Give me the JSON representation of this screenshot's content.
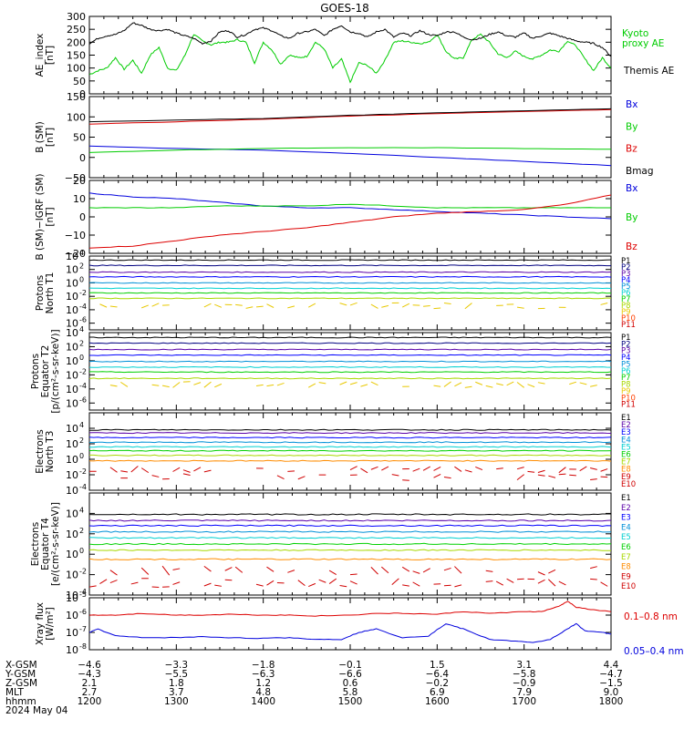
{
  "title": "GOES-18",
  "colors": {
    "black": "#000000",
    "red": "#dd0000",
    "green": "#00cc00",
    "blue": "#0000dd",
    "p_navy": "#000080",
    "p_darkviolet": "#5a00a8",
    "p_blue": "#0000ff",
    "p_steel": "#0090d8",
    "p_cyan": "#00d0d0",
    "p_teal": "#00c090",
    "p_green": "#00d000",
    "p_yellowgreen": "#a8d800",
    "p_gold": "#e8c800",
    "p_orange": "#ff8c00",
    "p_orangered": "#ff4000",
    "p_red": "#d00000"
  },
  "chart_data": [
    {
      "id": "ae",
      "type": "line",
      "ylabel": "AE_index\n[nT]",
      "ylim": [
        0,
        300
      ],
      "yticks": [
        "0",
        "50",
        "100",
        "150",
        "200",
        "250",
        "300"
      ],
      "x_range_hours": [
        12,
        18
      ],
      "series": [
        {
          "name": "Kyoto proxy AE",
          "label_lines": [
            "Kyoto",
            "proxy AE"
          ],
          "color_key": "green",
          "x": [
            12.0,
            12.1,
            12.2,
            12.3,
            12.4,
            12.5,
            12.6,
            12.7,
            12.8,
            12.9,
            13.0,
            13.1,
            13.2,
            13.3,
            13.4,
            13.5,
            13.6,
            13.7,
            13.8,
            13.9,
            14.0,
            14.1,
            14.2,
            14.3,
            14.4,
            14.5,
            14.6,
            14.7,
            14.8,
            14.9,
            15.0,
            15.1,
            15.2,
            15.3,
            15.4,
            15.5,
            15.6,
            15.7,
            15.8,
            15.9,
            16.0,
            16.1,
            16.2,
            16.3,
            16.4,
            16.5,
            16.6,
            16.7,
            16.8,
            16.9,
            17.0,
            17.1,
            17.2,
            17.3,
            17.4,
            17.5,
            17.6,
            17.7,
            17.8,
            17.9,
            18.0
          ],
          "y": [
            75,
            90,
            100,
            140,
            95,
            130,
            80,
            150,
            180,
            100,
            90,
            150,
            230,
            205,
            190,
            200,
            200,
            210,
            200,
            120,
            200,
            170,
            115,
            150,
            140,
            145,
            200,
            175,
            100,
            135,
            45,
            120,
            110,
            80,
            130,
            200,
            205,
            200,
            195,
            200,
            230,
            165,
            135,
            140,
            210,
            230,
            200,
            155,
            140,
            165,
            145,
            135,
            150,
            170,
            165,
            205,
            185,
            135,
            90,
            140,
            100
          ]
        },
        {
          "name": "Themis AE",
          "label_lines": [
            "Themis AE"
          ],
          "color_key": "black",
          "x": [
            12.0,
            12.1,
            12.2,
            12.3,
            12.4,
            12.5,
            12.6,
            12.7,
            12.8,
            12.9,
            13.0,
            13.1,
            13.2,
            13.3,
            13.4,
            13.5,
            13.6,
            13.7,
            13.8,
            13.9,
            14.0,
            14.1,
            14.2,
            14.3,
            14.4,
            14.5,
            14.6,
            14.7,
            14.8,
            14.9,
            15.0,
            15.1,
            15.2,
            15.3,
            15.4,
            15.5,
            15.6,
            15.7,
            15.8,
            15.9,
            16.0,
            16.1,
            16.2,
            16.3,
            16.4,
            16.5,
            16.6,
            16.7,
            16.8,
            16.9,
            17.0,
            17.1,
            17.2,
            17.3,
            17.4,
            17.5,
            17.6,
            17.7,
            17.8,
            17.9,
            18.0
          ],
          "y": [
            195,
            215,
            225,
            230,
            245,
            275,
            265,
            250,
            245,
            250,
            235,
            225,
            215,
            195,
            205,
            240,
            245,
            220,
            230,
            250,
            255,
            245,
            225,
            215,
            235,
            240,
            250,
            225,
            250,
            265,
            240,
            235,
            220,
            240,
            250,
            220,
            235,
            225,
            245,
            230,
            225,
            240,
            240,
            220,
            210,
            215,
            230,
            240,
            225,
            220,
            235,
            215,
            225,
            235,
            225,
            215,
            205,
            200,
            195,
            180,
            145
          ]
        }
      ]
    },
    {
      "id": "bsm",
      "type": "line",
      "ylabel": "B (SM)\n[nT]",
      "ylim": [
        -50,
        150
      ],
      "yticks": [
        "−50",
        "0",
        "50",
        "100",
        "150"
      ],
      "x_range_hours": [
        12,
        18
      ],
      "series": [
        {
          "name": "Bx",
          "color_key": "blue",
          "x": [
            12,
            13,
            14,
            15,
            16,
            17,
            18
          ],
          "y": [
            28,
            22,
            18,
            10,
            0,
            -10,
            -20
          ]
        },
        {
          "name": "By",
          "color_key": "green",
          "x": [
            12,
            13,
            14,
            15,
            16,
            17,
            18
          ],
          "y": [
            12,
            18,
            22,
            24,
            24,
            22,
            20
          ]
        },
        {
          "name": "Bz",
          "color_key": "red",
          "x": [
            12,
            13,
            14,
            15,
            16,
            17,
            18
          ],
          "y": [
            82,
            88,
            94,
            102,
            108,
            113,
            118
          ]
        },
        {
          "name": "Bmag",
          "color_key": "black",
          "x": [
            12,
            13,
            14,
            15,
            16,
            17,
            18
          ],
          "y": [
            88,
            92,
            96,
            104,
            110,
            115,
            120
          ]
        }
      ]
    },
    {
      "id": "bsmigrf",
      "type": "line",
      "ylabel": "B (SM)−IGRF (SM)\n[nT]",
      "ylim": [
        -20,
        20
      ],
      "yticks": [
        "−20",
        "−10",
        "0",
        "10",
        "20"
      ],
      "x_range_hours": [
        12,
        18
      ],
      "series": [
        {
          "name": "Bx",
          "color_key": "blue",
          "x": [
            12.0,
            12.5,
            13.0,
            13.5,
            14.0,
            14.5,
            15.0,
            15.5,
            16.0,
            16.5,
            17.0,
            17.5,
            18.0
          ],
          "y": [
            13,
            11,
            10,
            8,
            6,
            5,
            5,
            4,
            3,
            2,
            1,
            0,
            -1
          ]
        },
        {
          "name": "By",
          "color_key": "green",
          "x": [
            12.0,
            12.5,
            13.0,
            13.5,
            14.0,
            14.5,
            15.0,
            15.5,
            16.0,
            16.5,
            17.0,
            17.5,
            18.0
          ],
          "y": [
            5,
            5,
            5,
            6,
            6,
            6,
            7,
            6,
            5,
            5,
            5,
            5,
            5
          ]
        },
        {
          "name": "Bz",
          "color_key": "red",
          "x": [
            12.0,
            12.5,
            13.0,
            13.5,
            14.0,
            14.5,
            15.0,
            15.5,
            16.0,
            16.5,
            17.0,
            17.5,
            18.0
          ],
          "y": [
            -17,
            -16,
            -13,
            -10,
            -8,
            -6,
            -3,
            0,
            2,
            3,
            4,
            7,
            12
          ]
        }
      ]
    },
    {
      "id": "protons_north",
      "type": "line",
      "log": true,
      "ylabel": "Protons\nNorth T1",
      "decade_range": [
        -7,
        4
      ],
      "ytick_exps": [
        -6,
        -4,
        -2,
        0,
        2,
        4
      ],
      "x_range_hours": [
        12,
        18
      ],
      "series": [
        {
          "name": "P1",
          "color_key": "black",
          "level": 3.4
        },
        {
          "name": "P2",
          "color_key": "p_navy",
          "level": 2.6
        },
        {
          "name": "P3",
          "color_key": "p_darkviolet",
          "level": 1.6
        },
        {
          "name": "P4",
          "color_key": "p_blue",
          "level": 0.9
        },
        {
          "name": "P5",
          "color_key": "p_steel",
          "level": 0.0
        },
        {
          "name": "P6",
          "color_key": "p_cyan",
          "level": -0.8
        },
        {
          "name": "P7",
          "color_key": "p_green",
          "level": -1.5
        },
        {
          "name": "P8",
          "color_key": "p_yellowgreen",
          "level": -2.3
        },
        {
          "name": "P9",
          "color_key": "p_gold",
          "level": -3.4
        },
        {
          "name": "P10",
          "color_key": "p_orangered",
          "level": -9
        },
        {
          "name": "P11",
          "color_key": "p_red",
          "level": -9
        }
      ]
    },
    {
      "id": "protons_equator",
      "type": "line",
      "log": true,
      "ylabel": "Protons\nEquator T2\n[p/(cm²-s-sr-keV)]",
      "decade_range": [
        -7,
        4
      ],
      "ytick_exps": [
        -6,
        -4,
        -2,
        0,
        2,
        4
      ],
      "x_range_hours": [
        12,
        18
      ],
      "series": [
        {
          "name": "P1",
          "color_key": "black",
          "level": 3.3
        },
        {
          "name": "P2",
          "color_key": "p_navy",
          "level": 2.5
        },
        {
          "name": "P3",
          "color_key": "p_darkviolet",
          "level": 1.6
        },
        {
          "name": "P4",
          "color_key": "p_blue",
          "level": 0.8
        },
        {
          "name": "P5",
          "color_key": "p_steel",
          "level": -0.1
        },
        {
          "name": "P6",
          "color_key": "p_cyan",
          "level": -0.9
        },
        {
          "name": "P7",
          "color_key": "p_green",
          "level": -1.6
        },
        {
          "name": "P8",
          "color_key": "p_yellowgreen",
          "level": -2.5
        },
        {
          "name": "P9",
          "color_key": "p_gold",
          "level": -3.4
        },
        {
          "name": "P10",
          "color_key": "p_orangered",
          "level": -9
        },
        {
          "name": "P11",
          "color_key": "p_red",
          "level": -9
        }
      ]
    },
    {
      "id": "electrons_north",
      "type": "line",
      "log": true,
      "ylabel": "Electrons\nNorth T3",
      "decade_range": [
        -4,
        6
      ],
      "ytick_exps": [
        -4,
        -2,
        0,
        2,
        4
      ],
      "x_range_hours": [
        12,
        18
      ],
      "series": [
        {
          "name": "E1",
          "color_key": "black",
          "level": 3.8
        },
        {
          "name": "E2",
          "color_key": "p_darkviolet",
          "level": 3.4
        },
        {
          "name": "E3",
          "color_key": "p_blue",
          "level": 2.8
        },
        {
          "name": "E4",
          "color_key": "p_steel",
          "level": 2.2
        },
        {
          "name": "E5",
          "color_key": "p_cyan",
          "level": 1.6
        },
        {
          "name": "E6",
          "color_key": "p_green",
          "level": 1.1
        },
        {
          "name": "E7",
          "color_key": "p_yellowgreen",
          "level": 0.5
        },
        {
          "name": "E8",
          "color_key": "p_orange",
          "level": -0.2
        },
        {
          "name": "E9",
          "color_key": "p_red",
          "level": -1.3
        },
        {
          "name": "E10",
          "color_key": "p_red",
          "level": -2.3
        }
      ]
    },
    {
      "id": "electrons_equator",
      "type": "line",
      "log": true,
      "ylabel": "Electrons\nEquator T4\n[e/(cm²-s-sr-keV)]",
      "decade_range": [
        -4,
        6
      ],
      "ytick_exps": [
        -4,
        -2,
        0,
        2,
        4
      ],
      "x_range_hours": [
        12,
        18
      ],
      "series": [
        {
          "name": "E1",
          "color_key": "black",
          "level": 3.9
        },
        {
          "name": "E2",
          "color_key": "p_darkviolet",
          "level": 3.3
        },
        {
          "name": "E3",
          "color_key": "p_blue",
          "level": 2.8
        },
        {
          "name": "E4",
          "color_key": "p_steel",
          "level": 2.2
        },
        {
          "name": "E5",
          "color_key": "p_cyan",
          "level": 1.6
        },
        {
          "name": "E6",
          "color_key": "p_green",
          "level": 1.0
        },
        {
          "name": "E7",
          "color_key": "p_yellowgreen",
          "level": 0.4
        },
        {
          "name": "E8",
          "color_key": "p_orange",
          "level": -0.5
        },
        {
          "name": "E9",
          "color_key": "p_red",
          "level": -1.6
        },
        {
          "name": "E10",
          "color_key": "p_red",
          "level": -2.8
        }
      ]
    },
    {
      "id": "xray",
      "type": "line",
      "log": true,
      "ylabel": "Xray flux\n[W/m²]",
      "decade_range": [
        -8,
        -5
      ],
      "ytick_exps": [
        -8,
        -7,
        -6,
        -5
      ],
      "x_range_hours": [
        12,
        18
      ],
      "series": [
        {
          "name": "0.1–0.8 nm",
          "color_key": "red",
          "x": [
            12.0,
            12.3,
            12.6,
            13.0,
            13.3,
            13.6,
            14.0,
            14.3,
            14.6,
            15.0,
            15.3,
            15.6,
            16.0,
            16.3,
            16.6,
            17.0,
            17.2,
            17.4,
            17.5,
            17.6,
            17.8,
            18.0
          ],
          "y": [
            -6.0,
            -6.0,
            -5.9,
            -6.0,
            -6.0,
            -5.95,
            -6.0,
            -6.0,
            -6.05,
            -6.0,
            -5.9,
            -5.9,
            -5.95,
            -5.8,
            -5.9,
            -5.8,
            -5.8,
            -5.5,
            -5.2,
            -5.55,
            -5.7,
            -5.8
          ]
        },
        {
          "name": "0.05–0.4 nm",
          "color_key": "blue",
          "x": [
            12.0,
            12.1,
            12.3,
            12.6,
            13.0,
            13.3,
            13.6,
            14.0,
            14.3,
            14.6,
            14.9,
            15.1,
            15.3,
            15.6,
            15.9,
            16.1,
            16.3,
            16.6,
            16.9,
            17.1,
            17.3,
            17.5,
            17.6,
            17.7,
            17.9,
            18.0
          ],
          "y": [
            -7.0,
            -6.8,
            -7.2,
            -7.3,
            -7.3,
            -7.25,
            -7.3,
            -7.35,
            -7.3,
            -7.4,
            -7.4,
            -7.0,
            -6.8,
            -7.3,
            -7.2,
            -6.5,
            -6.8,
            -7.4,
            -7.5,
            -7.6,
            -7.4,
            -6.8,
            -6.5,
            -6.9,
            -7.0,
            -7.1
          ]
        }
      ]
    }
  ],
  "xaxis": {
    "row_labels": [
      "X-GSM",
      "Y-GSM",
      "Z-GSM",
      "MLT",
      "hhmm"
    ],
    "columns": [
      {
        "hours": 12,
        "values": [
          "−4.6",
          "−4.3",
          "2.1",
          "2.7",
          "1200"
        ]
      },
      {
        "hours": 13,
        "values": [
          "−3.3",
          "−5.5",
          "1.8",
          "3.7",
          "1300"
        ]
      },
      {
        "hours": 14,
        "values": [
          "−1.8",
          "−6.3",
          "1.2",
          "4.8",
          "1400"
        ]
      },
      {
        "hours": 15,
        "values": [
          "−0.1",
          "−6.6",
          "0.6",
          "5.8",
          "1500"
        ]
      },
      {
        "hours": 16,
        "values": [
          "1.5",
          "−6.4",
          "−0.2",
          "6.9",
          "1600"
        ]
      },
      {
        "hours": 17,
        "values": [
          "3.1",
          "−5.8",
          "−0.9",
          "7.9",
          "1700"
        ]
      },
      {
        "hours": 18,
        "values": [
          "4.4",
          "−4.7",
          "−1.5",
          "9.0",
          "1800"
        ]
      }
    ],
    "date": "2024 May 04"
  }
}
